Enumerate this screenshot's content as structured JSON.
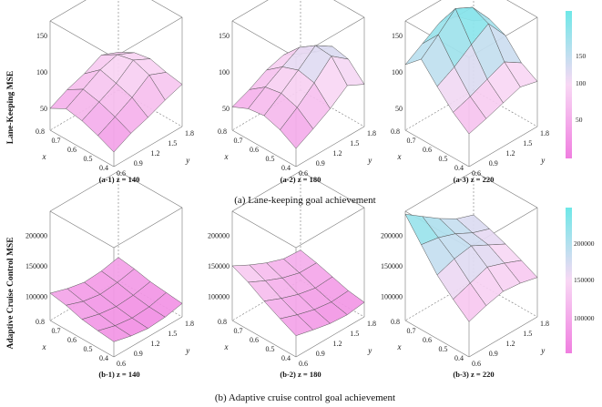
{
  "row_a": {
    "ylabel": "Lane-Keeping MSE",
    "caption": "(a) Lane-keeping goal achievement",
    "colorbar_ticks": [
      "150",
      "100",
      "50"
    ],
    "subplots": [
      {
        "label": "(a-1) z = 140"
      },
      {
        "label": "(a-2) z = 180"
      },
      {
        "label": "(a-3) z = 220"
      }
    ]
  },
  "row_b": {
    "ylabel": "Adaptive Cruise Control MSE",
    "caption": "(b) Adaptive cruise control goal achievement",
    "colorbar_ticks": [
      "200000",
      "150000",
      "100000"
    ],
    "subplots": [
      {
        "label": "(b-1) z = 140"
      },
      {
        "label": "(b-2) z = 180"
      },
      {
        "label": "(b-3) z = 220"
      }
    ]
  },
  "colors": {
    "low": "#f07ee0",
    "mid": "#f8d8f4",
    "high": "#6ee8e8",
    "edge": "#555555"
  },
  "chart_data": [
    {
      "type": "surface",
      "title": "(a-1) z = 140",
      "x": [
        0.4,
        0.5,
        0.6,
        0.7,
        0.8
      ],
      "y": [
        0.6,
        0.9,
        1.2,
        1.5,
        1.8
      ],
      "xlabel": "x",
      "ylabel": "y",
      "z_ticks": [
        "50",
        "100",
        "150"
      ],
      "x_ticks": [
        "0.4",
        "0.5",
        "0.6",
        "0.7",
        "0.8"
      ],
      "y_ticks": [
        "0.6",
        "0.9",
        "1.2",
        "1.5",
        "1.8"
      ],
      "zlim": [
        20,
        170
      ],
      "z": [
        [
          40,
          52,
          60,
          70,
          78
        ],
        [
          50,
          62,
          75,
          92,
          82
        ],
        [
          58,
          70,
          82,
          100,
          88
        ],
        [
          62,
          75,
          88,
          95,
          84
        ],
        [
          50,
          62,
          70,
          82,
          72
        ]
      ]
    },
    {
      "type": "surface",
      "title": "(a-2) z = 180",
      "x": [
        0.4,
        0.5,
        0.6,
        0.7,
        0.8
      ],
      "y": [
        0.6,
        0.9,
        1.2,
        1.5,
        1.8
      ],
      "xlabel": "x",
      "ylabel": "y",
      "z_ticks": [
        "50",
        "100",
        "150"
      ],
      "x_ticks": [
        "0.4",
        "0.5",
        "0.6",
        "0.7",
        "0.8"
      ],
      "y_ticks": [
        "0.6",
        "0.9",
        "1.2",
        "1.5",
        "1.8"
      ],
      "zlim": [
        20,
        170
      ],
      "z": [
        [
          45,
          58,
          72,
          90,
          78
        ],
        [
          58,
          75,
          95,
          118,
          100
        ],
        [
          65,
          82,
          100,
          120,
          105
        ],
        [
          62,
          78,
          92,
          105,
          85
        ],
        [
          52,
          62,
          75,
          82,
          70
        ]
      ]
    },
    {
      "type": "surface",
      "title": "(a-3) z = 220",
      "x": [
        0.4,
        0.5,
        0.6,
        0.7,
        0.8
      ],
      "y": [
        0.6,
        0.9,
        1.2,
        1.5,
        1.8
      ],
      "xlabel": "x",
      "ylabel": "y",
      "z_ticks": [
        "50",
        "100",
        "150"
      ],
      "x_ticks": [
        "0.4",
        "0.5",
        "0.6",
        "0.7",
        "0.8"
      ],
      "y_ticks": [
        "0.6",
        "0.9",
        "1.2",
        "1.5",
        "1.8"
      ],
      "zlim": [
        20,
        170
      ],
      "z": [
        [
          65,
          72,
          80,
          88,
          82
        ],
        [
          82,
          90,
          100,
          110,
          95
        ],
        [
          105,
          118,
          135,
          150,
          120
        ],
        [
          130,
          150,
          172,
          160,
          130
        ],
        [
          110,
          125,
          140,
          135,
          115
        ]
      ]
    },
    {
      "type": "surface",
      "title": "(b-1) z = 140",
      "x": [
        0.4,
        0.5,
        0.6,
        0.7,
        0.8
      ],
      "y": [
        0.6,
        0.9,
        1.2,
        1.5,
        1.8
      ],
      "xlabel": "x",
      "ylabel": "y",
      "z_ticks": [
        "100000",
        "150000",
        "200000"
      ],
      "x_ticks": [
        "0.4",
        "0.5",
        "0.6",
        "0.7",
        "0.8"
      ],
      "y_ticks": [
        "0.6",
        "0.9",
        "1.2",
        "1.5",
        "1.8"
      ],
      "zlim": [
        60000,
        240000
      ],
      "z": [
        [
          85000,
          78000,
          74000,
          76000,
          82000
        ],
        [
          88000,
          80000,
          76000,
          78000,
          85000
        ],
        [
          92000,
          84000,
          80000,
          82000,
          88000
        ],
        [
          100000,
          90000,
          85000,
          88000,
          94000
        ],
        [
          105000,
          96000,
          90000,
          92000,
          98000
        ]
      ]
    },
    {
      "type": "surface",
      "title": "(b-2) z = 180",
      "x": [
        0.4,
        0.5,
        0.6,
        0.7,
        0.8
      ],
      "y": [
        0.6,
        0.9,
        1.2,
        1.5,
        1.8
      ],
      "xlabel": "x",
      "ylabel": "y",
      "z_ticks": [
        "100000",
        "150000",
        "200000"
      ],
      "x_ticks": [
        "0.4",
        "0.5",
        "0.6",
        "0.7",
        "0.8"
      ],
      "y_ticks": [
        "0.6",
        "0.9",
        "1.2",
        "1.5",
        "1.8"
      ],
      "zlim": [
        60000,
        240000
      ],
      "z": [
        [
          95000,
          88000,
          82000,
          80000,
          84000
        ],
        [
          108000,
          98000,
          90000,
          86000,
          88000
        ],
        [
          122000,
          110000,
          100000,
          94000,
          96000
        ],
        [
          138000,
          124000,
          112000,
          104000,
          104000
        ],
        [
          150000,
          135000,
          122000,
          112000,
          110000
        ]
      ]
    },
    {
      "type": "surface",
      "title": "(b-3) z = 220",
      "x": [
        0.4,
        0.5,
        0.6,
        0.7,
        0.8
      ],
      "y": [
        0.6,
        0.9,
        1.2,
        1.5,
        1.8
      ],
      "xlabel": "x",
      "ylabel": "y",
      "z_ticks": [
        "100000",
        "150000",
        "200000"
      ],
      "x_ticks": [
        "0.4",
        "0.5",
        "0.6",
        "0.7",
        "0.8"
      ],
      "y_ticks": [
        "0.6",
        "0.9",
        "1.2",
        "1.5",
        "1.8"
      ],
      "zlim": [
        60000,
        240000
      ],
      "z": [
        [
          118000,
          128000,
          135000,
          132000,
          125000
        ],
        [
          140000,
          150000,
          160000,
          150000,
          138000
        ],
        [
          165000,
          175000,
          180000,
          165000,
          150000
        ],
        [
          200000,
          195000,
          185000,
          170000,
          160000
        ],
        [
          235000,
          215000,
          195000,
          178000,
          168000
        ]
      ]
    }
  ]
}
